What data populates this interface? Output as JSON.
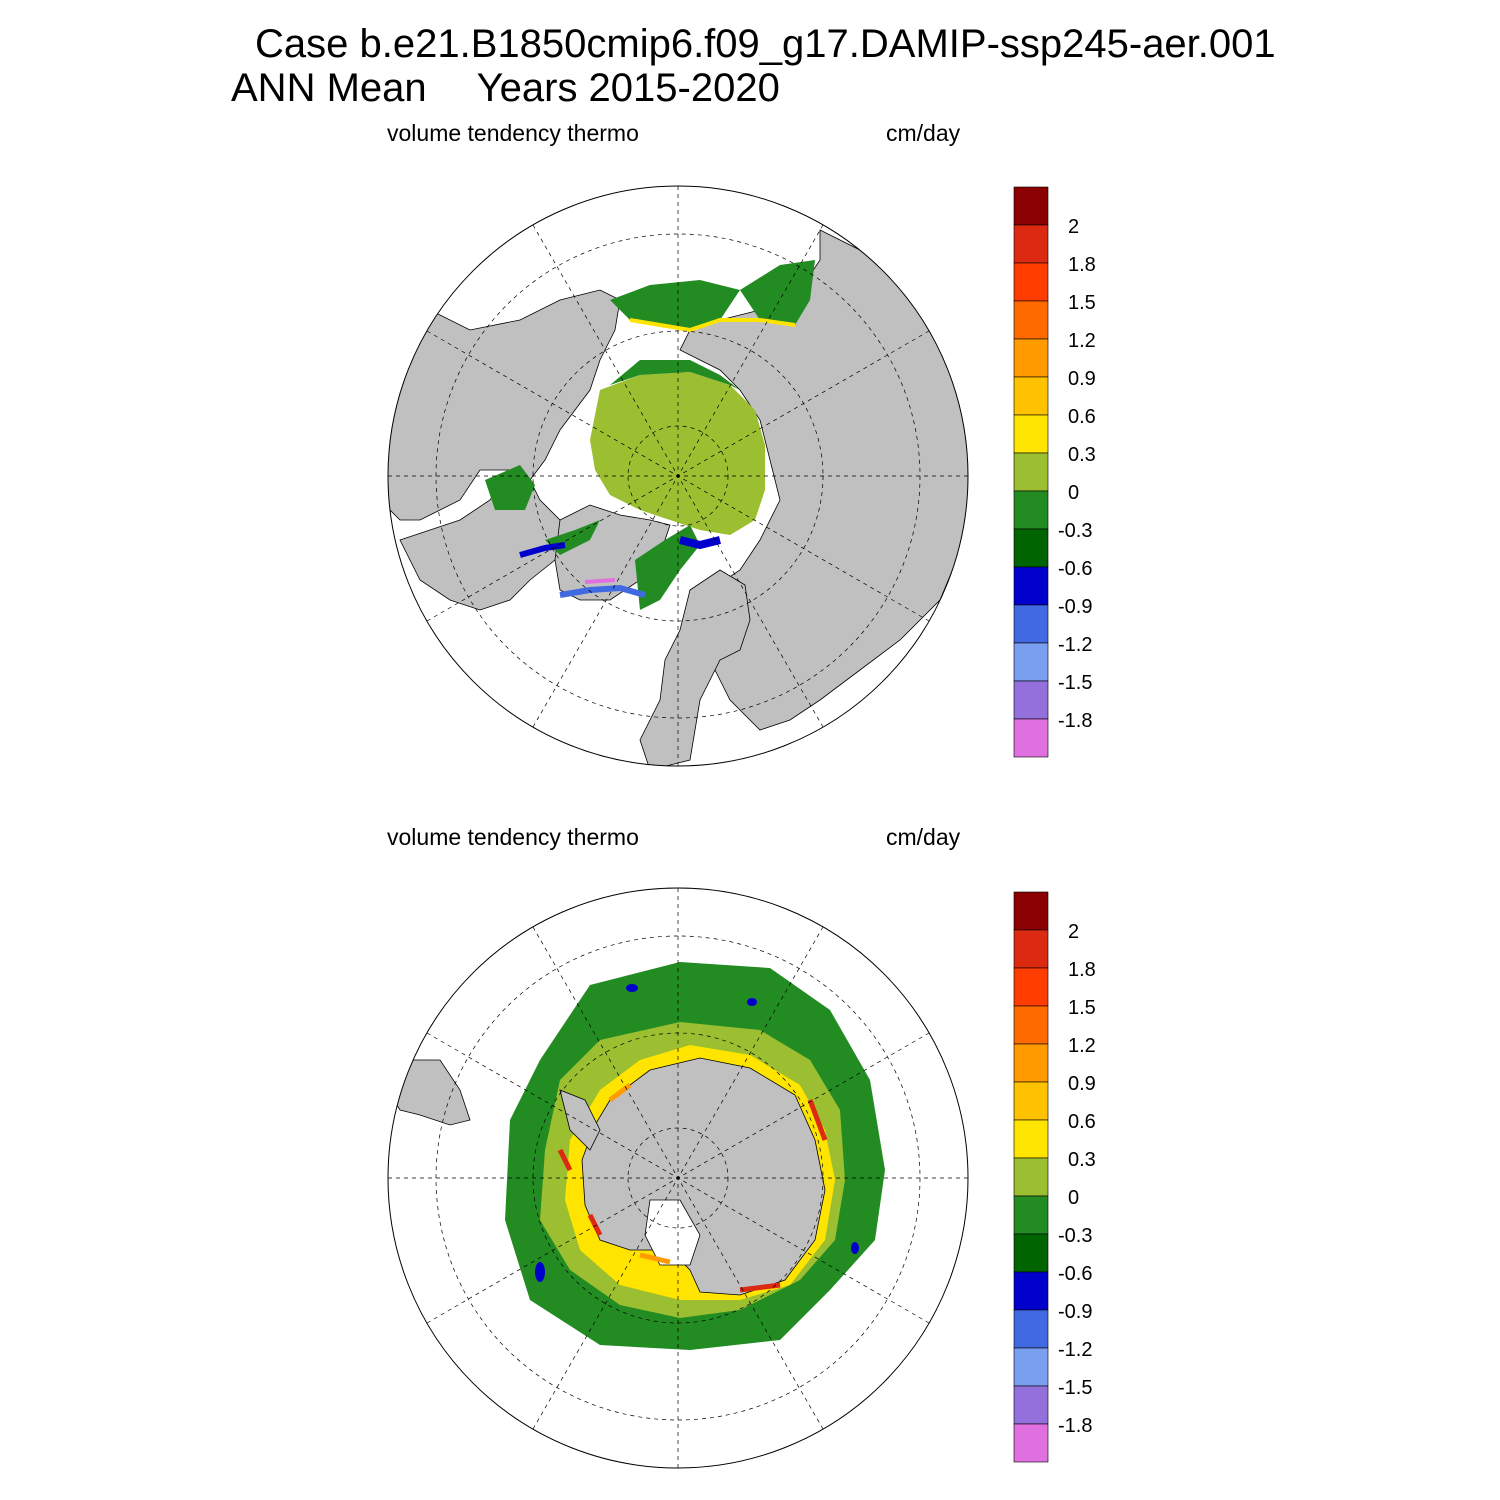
{
  "title": {
    "line1": "Case b.e21.B1850cmip6.f09_g17.DAMIP-ssp245-aer.001",
    "line2_left": "ANN Mean",
    "line2_right": "Years 2015-2020"
  },
  "panels": [
    {
      "id": "north",
      "hemisphere": "Arctic (north polar stereographic)",
      "variable_label": "volume tendency thermo",
      "units_label": "cm/day"
    },
    {
      "id": "south",
      "hemisphere": "Antarctic (south polar stereographic)",
      "variable_label": "volume tendency thermo",
      "units_label": "cm/day"
    }
  ],
  "colorbar": {
    "tick_labels": [
      "2",
      "1.8",
      "1.5",
      "1.2",
      "0.9",
      "0.6",
      "0.3",
      "0",
      "-0.3",
      "-0.6",
      "-0.9",
      "-1.2",
      "-1.5",
      "-1.8"
    ],
    "colors": [
      "#8b0000",
      "#dc2a12",
      "#ff3c00",
      "#ff6a00",
      "#ff9a00",
      "#ffc200",
      "#ffe400",
      "#9bbf30",
      "#228b22",
      "#006400",
      "#0000cd",
      "#4169e1",
      "#7b9ff0",
      "#9370db",
      "#e070e0"
    ]
  },
  "colors": {
    "land": "#c0c0c0",
    "ocean_missing": "#ffffff",
    "grid": "#000000"
  }
}
